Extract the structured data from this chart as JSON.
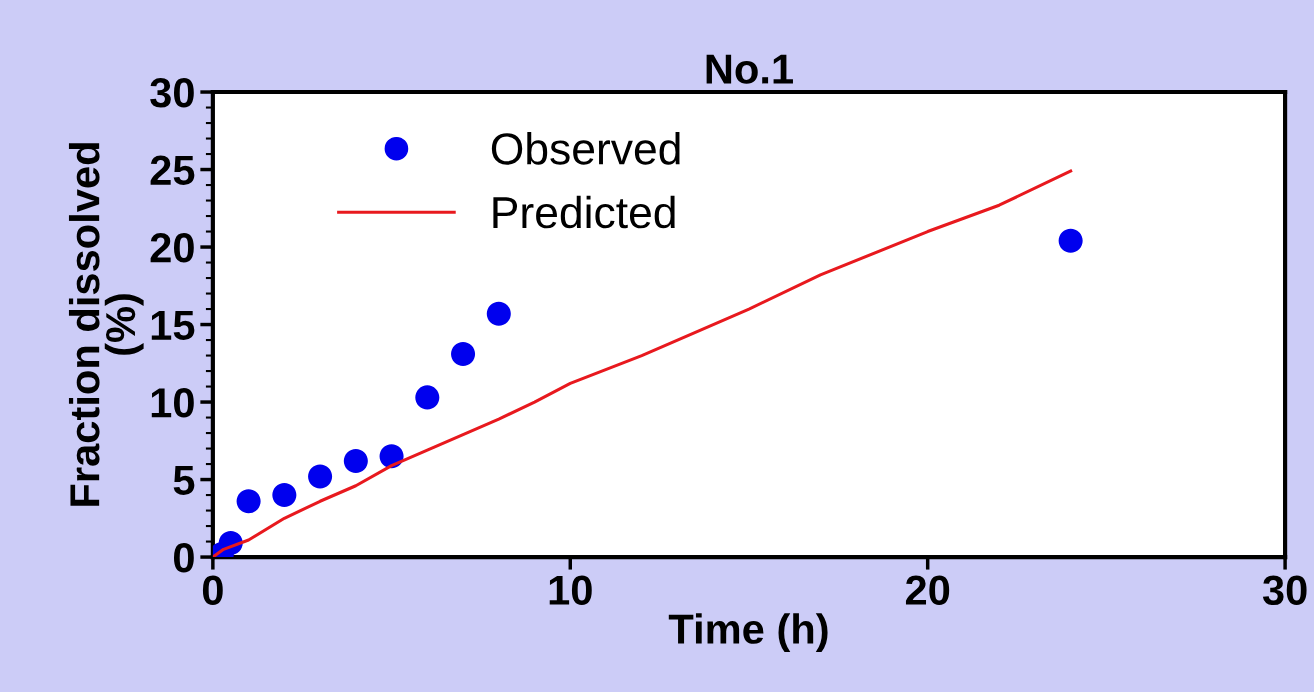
{
  "chart_data": {
    "type": "scatter",
    "title": "No.1",
    "xlabel": "Time (h)",
    "ylabel": "Fraction dissolved\n(%)",
    "series": [
      {
        "name": "Observed",
        "color": "#0000ee",
        "marker": "circle",
        "x": [
          0.25,
          0.5,
          1,
          2,
          3,
          4,
          5,
          6,
          7,
          8,
          24
        ],
        "values": [
          0.2,
          0.9,
          3.6,
          4.0,
          5.2,
          6.2,
          6.5,
          10.3,
          13.1,
          15.7,
          20.4
        ]
      },
      {
        "name": "Predicted",
        "type": "line",
        "color": "#e8191e",
        "marker": "none",
        "line_style": "solid",
        "x": [
          0,
          0.3,
          1,
          2,
          3,
          4,
          5,
          6,
          7,
          8,
          9,
          10,
          12,
          15,
          17,
          20,
          22,
          24
        ],
        "values": [
          0,
          0.5,
          1.1,
          2.5,
          3.6,
          4.6,
          5.9,
          6.9,
          7.9,
          8.9,
          10.0,
          11.2,
          13.0,
          16.0,
          18.2,
          21.0,
          22.7,
          24.9
        ]
      }
    ],
    "xlim": [
      0,
      30
    ],
    "xticks": [
      0,
      10,
      20,
      30
    ],
    "ylim": [
      0,
      30
    ],
    "yticks": [
      0,
      5,
      10,
      15,
      20,
      25,
      30
    ],
    "grid": false,
    "legend": "top left"
  }
}
